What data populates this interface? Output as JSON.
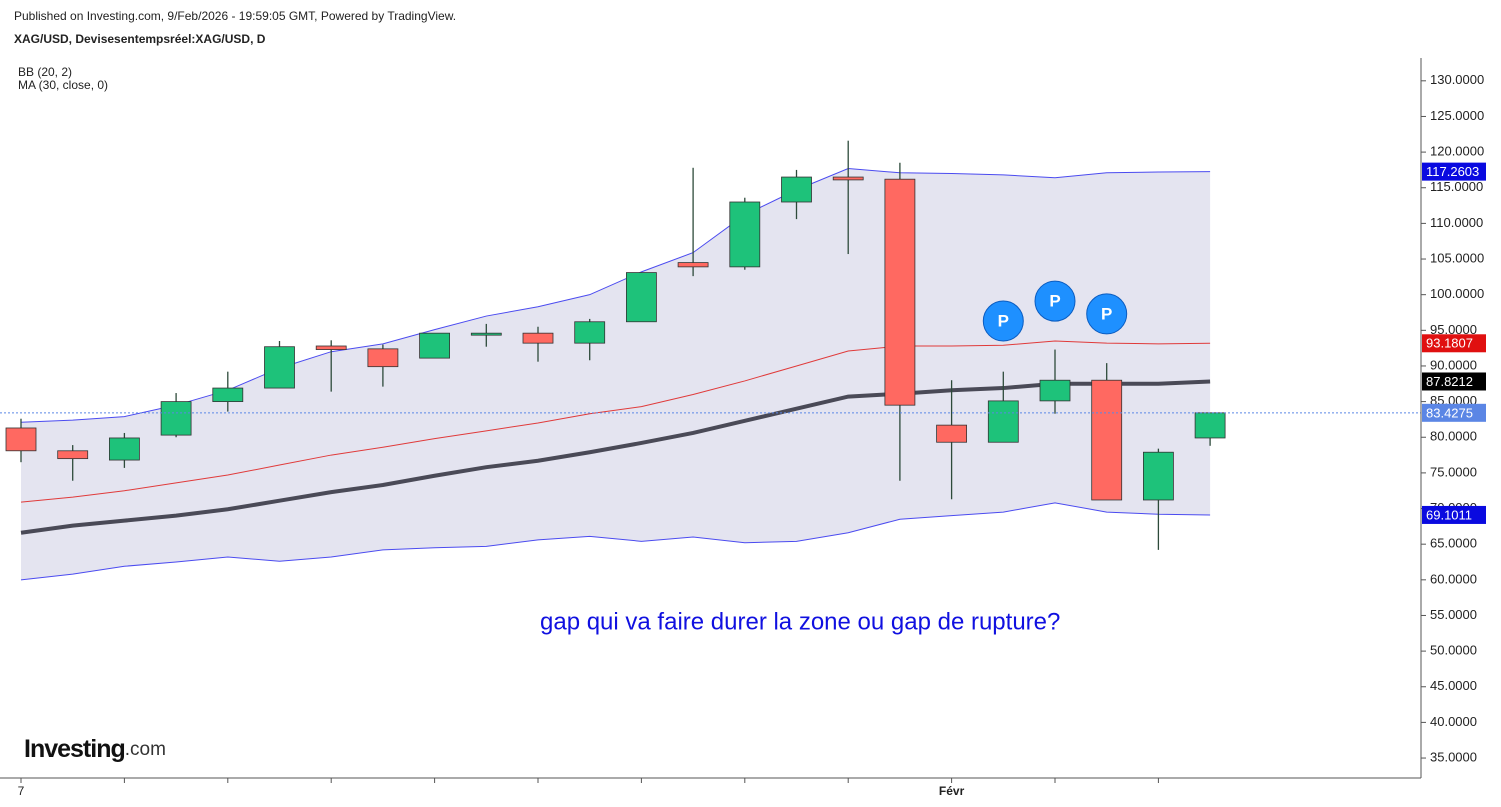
{
  "chart_data": {
    "type": "candlestick",
    "header": "Published on Investing.com, 9/Feb/2026 - 19:59:05 GMT, Powered by TradingView.",
    "title": "XAG/USD, Devisesentempsréel:XAG/USD, D",
    "indicators": [
      "BB (20, 2)",
      "MA (30, close, 0)"
    ],
    "annotation": "gap qui va faire durer la zone ou gap de rupture?",
    "brand": "Investing",
    "brand_suffix": ".com",
    "categories": [
      "7",
      null,
      null,
      null,
      null,
      null,
      null,
      null,
      null,
      null,
      null,
      null,
      null,
      null,
      null,
      null,
      null,
      null,
      "Févr",
      null,
      null,
      null,
      null,
      null
    ],
    "open": [
      81.3,
      78.1,
      76.8,
      80.3,
      85.0,
      86.9,
      92.8,
      92.4,
      91.1,
      94.4,
      94.6,
      93.2,
      96.2,
      104.5,
      103.9,
      113.0,
      116.5,
      116.2,
      81.7,
      79.3,
      85.1,
      88.0,
      71.2,
      79.9
    ],
    "high": [
      82.6,
      78.9,
      80.6,
      86.2,
      89.2,
      93.5,
      93.6,
      93.0,
      94.6,
      95.9,
      95.5,
      96.6,
      103.1,
      117.8,
      113.6,
      117.5,
      121.6,
      118.5,
      88.0,
      89.2,
      92.3,
      90.4,
      78.4,
      83.4275
    ],
    "low": [
      76.5,
      73.9,
      75.7,
      80.0,
      83.6,
      86.9,
      86.4,
      87.1,
      91.1,
      92.7,
      90.6,
      90.8,
      96.2,
      102.6,
      103.5,
      110.6,
      105.7,
      73.9,
      71.3,
      79.3,
      83.3,
      71.2,
      64.2,
      78.8
    ],
    "close": [
      78.1,
      77.0,
      79.9,
      85.0,
      86.9,
      92.7,
      92.3,
      89.9,
      94.6,
      94.6,
      93.2,
      96.2,
      103.1,
      103.9,
      113.0,
      116.5,
      116.1,
      84.5,
      79.3,
      85.1,
      88.0,
      71.2,
      77.9,
      83.4275
    ],
    "up_color": "#1ec27a",
    "down_color": "#ff6961",
    "last_color": "#5b86e5",
    "series": [
      {
        "color": "#4b4bf0",
        "width": 1,
        "label_color": "#0a0ae0",
        "values": [
          82.1,
          82.4,
          82.9,
          84.5,
          86.6,
          89.7,
          92.0,
          93.1,
          95.1,
          97.0,
          98.3,
          100.0,
          103.2,
          105.9,
          111.2,
          114.7,
          117.7,
          117.1,
          117.0,
          116.8,
          116.4,
          117.1,
          117.2,
          117.2603
        ]
      },
      {
        "color": "#e03a3a",
        "width": 1,
        "label_color": "#e01010",
        "values": [
          70.9,
          71.6,
          72.5,
          73.6,
          74.7,
          76.1,
          77.5,
          78.6,
          79.8,
          80.9,
          82.0,
          83.3,
          84.3,
          86.0,
          87.9,
          90.0,
          92.1,
          92.8,
          92.8,
          92.9,
          93.5,
          93.2,
          93.1,
          93.1807
        ]
      },
      {
        "color": "#4b4bf0",
        "width": 1,
        "label_color": "#0a0ae0",
        "values": [
          60.0,
          60.8,
          61.9,
          62.5,
          63.2,
          62.6,
          63.2,
          64.2,
          64.5,
          64.7,
          65.6,
          66.1,
          65.4,
          66.0,
          65.2,
          65.4,
          66.6,
          68.5,
          69.0,
          69.5,
          70.8,
          69.5,
          69.2,
          69.1011
        ]
      },
      {
        "color": "#4a4a57",
        "width": 4,
        "label_color": "#000000",
        "values": [
          66.6,
          67.6,
          68.3,
          69.0,
          69.9,
          71.1,
          72.3,
          73.3,
          74.6,
          75.8,
          76.7,
          77.9,
          79.2,
          80.6,
          82.3,
          84.0,
          85.7,
          86.1,
          86.6,
          86.9,
          87.5,
          87.5,
          87.5,
          87.8212
        ]
      }
    ],
    "band_fill": "#e4e4f0",
    "markers": [
      {
        "index": 19,
        "value": 96.3,
        "label": "P"
      },
      {
        "index": 20,
        "value": 99.1,
        "label": "P"
      },
      {
        "index": 21,
        "value": 97.3,
        "label": "P"
      }
    ],
    "ylim": [
      32.2,
      133.2
    ],
    "yticks": [
      {
        "value": 35,
        "label": "35.0000"
      },
      {
        "value": 40,
        "label": "40.0000"
      },
      {
        "value": 45,
        "label": "45.0000"
      },
      {
        "value": 50,
        "label": "50.0000"
      },
      {
        "value": 55,
        "label": "55.0000"
      },
      {
        "value": 60,
        "label": "60.0000"
      },
      {
        "value": 65,
        "label": "65.0000"
      },
      {
        "value": 70,
        "label": "70.0000"
      },
      {
        "value": 75,
        "label": "75.0000"
      },
      {
        "value": 80,
        "label": "80.0000"
      },
      {
        "value": 85,
        "label": "85.0000"
      },
      {
        "value": 90,
        "label": "90.0000"
      },
      {
        "value": 95,
        "label": "95.0000"
      },
      {
        "value": 100,
        "label": "100.0000"
      },
      {
        "value": 105,
        "label": "105.0000"
      },
      {
        "value": 110,
        "label": "110.0000"
      },
      {
        "value": 115,
        "label": "115.0000"
      },
      {
        "value": 120,
        "label": "120.0000"
      },
      {
        "value": 125,
        "label": "125.0000"
      },
      {
        "value": 130,
        "label": "130.0000"
      }
    ]
  }
}
